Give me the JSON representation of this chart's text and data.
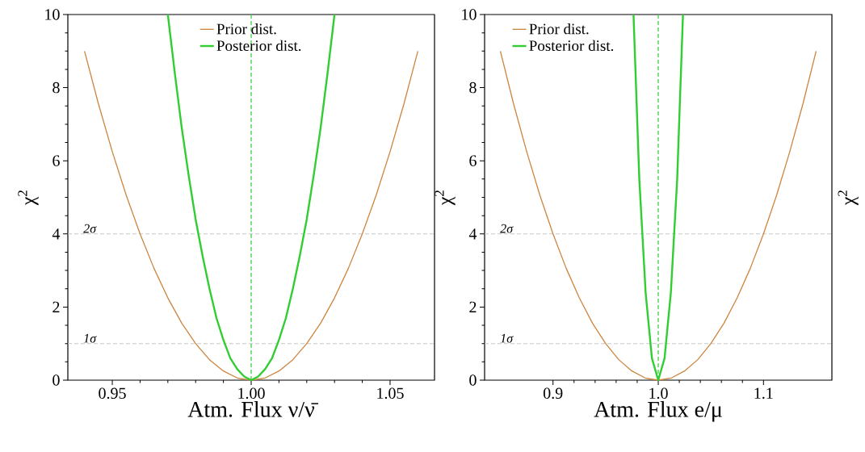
{
  "chart_data": [
    {
      "type": "line",
      "xlabel": "Atm. Flux ν/ν̄",
      "ylabel": "χ$^{2}$",
      "xlim": [
        0.934,
        1.066
      ],
      "ylim": [
        0,
        10
      ],
      "xticks": [
        0.95,
        {
          "value": 1.0,
          "label": "1.00"
        },
        1.05
      ],
      "yticks": [
        0,
        2,
        4,
        6,
        8,
        10
      ],
      "legend": "top",
      "grid": false,
      "line_style": "solid",
      "marker": "none",
      "series": [
        {
          "name": "Prior dist.",
          "color": "#cd853f",
          "x": [
            0.94,
            0.945,
            0.95,
            0.955,
            0.96,
            0.965,
            0.97,
            0.975,
            0.98,
            0.985,
            0.99,
            0.995,
            1.0,
            1.005,
            1.01,
            1.015,
            1.02,
            1.025,
            1.03,
            1.035,
            1.04,
            1.045,
            1.05,
            1.055,
            1.06
          ],
          "values": [
            9,
            7.56,
            6.25,
            5.06,
            4,
            3.06,
            2.25,
            1.56,
            1,
            0.56,
            0.25,
            0.06,
            0,
            0.06,
            0.25,
            0.56,
            1,
            1.56,
            2.25,
            3.06,
            4,
            5.06,
            6.25,
            7.56,
            9
          ]
        },
        {
          "name": "Posterior dist.",
          "color": "#32cd32",
          "x": [
            0.97,
            0.9725,
            0.975,
            0.9775,
            0.98,
            0.9825,
            0.985,
            0.9875,
            0.99,
            0.9925,
            0.995,
            0.9975,
            1.0,
            1.0025,
            1.005,
            1.0075,
            1.01,
            1.0125,
            1.015,
            1.0175,
            1.02,
            1.0225,
            1.025,
            1.0275,
            1.03
          ],
          "values": [
            10,
            8.4,
            6.9,
            5.6,
            4.4,
            3.4,
            2.5,
            1.7,
            1.1,
            0.6,
            0.3,
            0.1,
            0,
            0.1,
            0.3,
            0.6,
            1.1,
            1.7,
            2.5,
            3.4,
            4.4,
            5.6,
            6.9,
            8.4,
            10
          ]
        }
      ],
      "ref_lines": [
        {
          "axis": "y",
          "value": 1,
          "label": "1σ",
          "color": "#c8c8c8",
          "line_style": "dashed"
        },
        {
          "axis": "y",
          "value": 4,
          "label": "2σ",
          "color": "#c8c8c8",
          "line_style": "dashed"
        },
        {
          "axis": "x",
          "value": 1.0,
          "color": "#32cd32",
          "line_style": "dashed"
        }
      ]
    },
    {
      "type": "line",
      "xlabel": "Atm. Flux e/μ",
      "ylabel": "χ$^{2}$",
      "xlim": [
        0.835,
        1.165
      ],
      "ylim": [
        0,
        10
      ],
      "xticks": [
        0.9,
        {
          "value": 1.0,
          "label": "1.0"
        },
        1.1
      ],
      "yticks": [
        0,
        2,
        4,
        6,
        8,
        10
      ],
      "legend": "top left",
      "grid": false,
      "line_style": "solid",
      "marker": "none",
      "annotations": [
        "χ$^{2}$"
      ],
      "series": [
        {
          "name": "Prior dist.",
          "color": "#cd853f",
          "x": [
            0.85,
            0.8625,
            0.875,
            0.8875,
            0.9,
            0.9125,
            0.925,
            0.9375,
            0.95,
            0.9625,
            0.975,
            0.9875,
            1.0,
            1.0125,
            1.025,
            1.0375,
            1.05,
            1.0625,
            1.075,
            1.0875,
            1.1,
            1.1125,
            1.125,
            1.1375,
            1.15
          ],
          "values": [
            9,
            7.56,
            6.25,
            5.06,
            4,
            3.06,
            2.25,
            1.56,
            1,
            0.56,
            0.25,
            0.06,
            0,
            0.06,
            0.25,
            0.56,
            1,
            1.56,
            2.25,
            3.06,
            4,
            5.06,
            6.25,
            7.56,
            9
          ]
        },
        {
          "name": "Posterior dist.",
          "color": "#32cd32",
          "x": [
            0.9765,
            0.982,
            0.988,
            0.994,
            1.0,
            1.006,
            1.012,
            1.018,
            1.0235
          ],
          "values": [
            10,
            5.5,
            2.4,
            0.6,
            0,
            0.6,
            2.4,
            5.5,
            10
          ]
        }
      ],
      "ref_lines": [
        {
          "axis": "y",
          "value": 1,
          "label": "1σ",
          "color": "#c8c8c8",
          "line_style": "dashed"
        },
        {
          "axis": "y",
          "value": 4,
          "label": "2σ",
          "color": "#c8c8c8",
          "line_style": "dashed"
        },
        {
          "axis": "x",
          "value": 1.0,
          "color": "#32cd32",
          "line_style": "dashed"
        }
      ]
    }
  ]
}
